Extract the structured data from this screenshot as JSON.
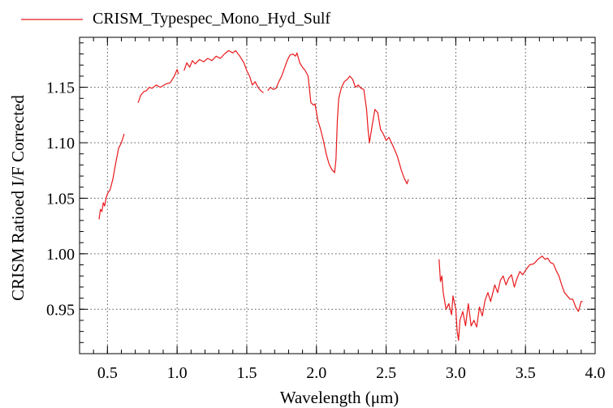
{
  "chart_data": {
    "type": "line",
    "title": "",
    "xlabel": "Wavelength (μm)",
    "ylabel": "CRISM Ratioed I/F Corrected",
    "xlim": [
      0.3,
      4.0
    ],
    "ylim": [
      0.91,
      1.195
    ],
    "grid": true,
    "grid_style": "dotted",
    "legend": {
      "placement": "top-left-outside"
    },
    "x_ticks": [
      0.5,
      1.0,
      1.5,
      2.0,
      2.5,
      3.0,
      3.5,
      4.0
    ],
    "x_tick_labels": [
      "0.5",
      "1.0",
      "1.5",
      "2.0",
      "2.5",
      "3.0",
      "3.5",
      "4.0"
    ],
    "y_ticks": [
      0.95,
      1.0,
      1.05,
      1.1,
      1.15
    ],
    "y_tick_labels": [
      "0.95",
      "1.00",
      "1.05",
      "1.10",
      "1.15"
    ],
    "series": [
      {
        "name": "CRISM_Typespec_Mono_Hyd_Sulf",
        "color": "#e8191c",
        "segments": [
          [
            [
              0.44,
              1.031
            ],
            [
              0.45,
              1.04
            ],
            [
              0.46,
              1.038
            ],
            [
              0.47,
              1.046
            ],
            [
              0.48,
              1.043
            ],
            [
              0.49,
              1.05
            ],
            [
              0.5,
              1.054
            ],
            [
              0.52,
              1.058
            ],
            [
              0.54,
              1.068
            ],
            [
              0.56,
              1.082
            ],
            [
              0.58,
              1.095
            ],
            [
              0.6,
              1.1
            ],
            [
              0.62,
              1.108
            ]
          ],
          [
            [
              0.72,
              1.136
            ],
            [
              0.74,
              1.143
            ],
            [
              0.76,
              1.146
            ],
            [
              0.78,
              1.147
            ],
            [
              0.8,
              1.15
            ],
            [
              0.82,
              1.149
            ],
            [
              0.85,
              1.152
            ],
            [
              0.88,
              1.15
            ],
            [
              0.92,
              1.153
            ],
            [
              0.95,
              1.154
            ],
            [
              0.98,
              1.16
            ],
            [
              1.0,
              1.166
            ],
            [
              1.01,
              1.162
            ]
          ],
          [
            [
              1.05,
              1.165
            ],
            [
              1.07,
              1.172
            ],
            [
              1.09,
              1.168
            ],
            [
              1.11,
              1.174
            ],
            [
              1.13,
              1.171
            ],
            [
              1.16,
              1.175
            ],
            [
              1.19,
              1.173
            ],
            [
              1.22,
              1.176
            ],
            [
              1.25,
              1.174
            ],
            [
              1.28,
              1.178
            ],
            [
              1.31,
              1.176
            ],
            [
              1.34,
              1.18
            ],
            [
              1.37,
              1.183
            ],
            [
              1.4,
              1.181
            ],
            [
              1.42,
              1.183
            ],
            [
              1.45,
              1.178
            ],
            [
              1.48,
              1.172
            ],
            [
              1.5,
              1.165
            ],
            [
              1.52,
              1.16
            ],
            [
              1.54,
              1.152
            ],
            [
              1.56,
              1.155
            ],
            [
              1.58,
              1.15
            ],
            [
              1.6,
              1.147
            ],
            [
              1.62,
              1.145
            ]
          ],
          [
            [
              1.65,
              1.147
            ],
            [
              1.67,
              1.15
            ],
            [
              1.69,
              1.148
            ],
            [
              1.71,
              1.149
            ],
            [
              1.73,
              1.155
            ],
            [
              1.75,
              1.16
            ],
            [
              1.77,
              1.167
            ],
            [
              1.79,
              1.174
            ],
            [
              1.81,
              1.179
            ],
            [
              1.83,
              1.18
            ],
            [
              1.85,
              1.178
            ],
            [
              1.86,
              1.181
            ],
            [
              1.88,
              1.172
            ],
            [
              1.9,
              1.168
            ],
            [
              1.92,
              1.165
            ],
            [
              1.94,
              1.16
            ],
            [
              1.95,
              1.148
            ],
            [
              1.96,
              1.136
            ],
            [
              1.98,
              1.134
            ],
            [
              1.99,
              1.135
            ],
            [
              2.01,
              1.12
            ],
            [
              2.03,
              1.112
            ],
            [
              2.05,
              1.102
            ],
            [
              2.07,
              1.09
            ],
            [
              2.09,
              1.081
            ],
            [
              2.11,
              1.076
            ],
            [
              2.13,
              1.073
            ],
            [
              2.14,
              1.085
            ],
            [
              2.15,
              1.12
            ],
            [
              2.16,
              1.14
            ],
            [
              2.18,
              1.15
            ],
            [
              2.2,
              1.155
            ],
            [
              2.22,
              1.157
            ],
            [
              2.24,
              1.16
            ],
            [
              2.26,
              1.157
            ],
            [
              2.28,
              1.15
            ],
            [
              2.3,
              1.152
            ],
            [
              2.32,
              1.149
            ],
            [
              2.34,
              1.148
            ],
            [
              2.36,
              1.13
            ],
            [
              2.37,
              1.112
            ],
            [
              2.38,
              1.1
            ],
            [
              2.39,
              1.108
            ],
            [
              2.41,
              1.123
            ],
            [
              2.42,
              1.13
            ],
            [
              2.44,
              1.127
            ],
            [
              2.46,
              1.112
            ],
            [
              2.48,
              1.108
            ],
            [
              2.5,
              1.102
            ],
            [
              2.52,
              1.105
            ],
            [
              2.55,
              1.097
            ],
            [
              2.58,
              1.088
            ],
            [
              2.61,
              1.075
            ],
            [
              2.63,
              1.068
            ],
            [
              2.65,
              1.063
            ],
            [
              2.66,
              1.067
            ]
          ],
          [
            [
              2.88,
              0.995
            ],
            [
              2.89,
              0.975
            ],
            [
              2.9,
              0.98
            ],
            [
              2.91,
              0.965
            ],
            [
              2.93,
              0.95
            ],
            [
              2.95,
              0.955
            ],
            [
              2.97,
              0.945
            ],
            [
              2.98,
              0.962
            ],
            [
              3.0,
              0.95
            ],
            [
              3.01,
              0.93
            ],
            [
              3.02,
              0.922
            ],
            [
              3.03,
              0.94
            ],
            [
              3.05,
              0.948
            ],
            [
              3.07,
              0.935
            ],
            [
              3.09,
              0.955
            ],
            [
              3.11,
              0.935
            ],
            [
              3.13,
              0.94
            ],
            [
              3.15,
              0.934
            ],
            [
              3.17,
              0.952
            ],
            [
              3.19,
              0.944
            ],
            [
              3.21,
              0.958
            ],
            [
              3.23,
              0.965
            ],
            [
              3.25,
              0.957
            ],
            [
              3.28,
              0.972
            ],
            [
              3.3,
              0.965
            ],
            [
              3.32,
              0.976
            ],
            [
              3.34,
              0.98
            ],
            [
              3.36,
              0.972
            ],
            [
              3.38,
              0.978
            ],
            [
              3.4,
              0.981
            ],
            [
              3.42,
              0.97
            ],
            [
              3.44,
              0.978
            ],
            [
              3.46,
              0.984
            ],
            [
              3.48,
              0.981
            ],
            [
              3.5,
              0.985
            ],
            [
              3.53,
              0.99
            ],
            [
              3.56,
              0.991
            ],
            [
              3.59,
              0.995
            ],
            [
              3.62,
              0.998
            ],
            [
              3.64,
              0.995
            ],
            [
              3.66,
              0.996
            ],
            [
              3.68,
              0.992
            ],
            [
              3.7,
              0.991
            ],
            [
              3.72,
              0.985
            ],
            [
              3.74,
              0.98
            ],
            [
              3.76,
              0.972
            ],
            [
              3.78,
              0.965
            ],
            [
              3.8,
              0.962
            ],
            [
              3.82,
              0.959
            ],
            [
              3.84,
              0.959
            ],
            [
              3.86,
              0.952
            ],
            [
              3.88,
              0.948
            ],
            [
              3.9,
              0.957
            ],
            [
              3.91,
              0.957
            ]
          ]
        ]
      }
    ]
  }
}
